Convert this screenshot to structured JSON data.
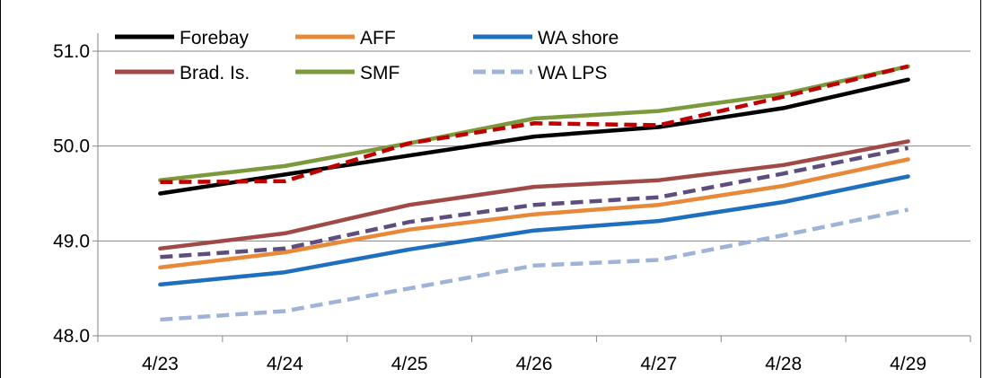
{
  "chart_data": {
    "type": "line",
    "categories": [
      "4/23",
      "4/24",
      "4/25",
      "4/26",
      "4/27",
      "4/28",
      "4/29"
    ],
    "ylim": [
      48.0,
      51.0
    ],
    "yticks": [
      "48.0",
      "49.0",
      "50.0",
      "51.0"
    ],
    "grid": true,
    "legend_position": "top",
    "series": [
      {
        "name": "Forebay",
        "color": "#000000",
        "dash": false,
        "values": [
          49.5,
          49.7,
          49.9,
          50.1,
          50.2,
          50.4,
          50.7
        ]
      },
      {
        "name": "AFF",
        "color": "#E8893A",
        "dash": false,
        "values": [
          48.72,
          48.88,
          49.12,
          49.28,
          49.38,
          49.58,
          49.86
        ]
      },
      {
        "name": "WA shore",
        "color": "#1F6FBF",
        "dash": false,
        "values": [
          48.54,
          48.67,
          48.91,
          49.11,
          49.21,
          49.41,
          49.68
        ]
      },
      {
        "name": "Brad. Is.",
        "color": "#A04A48",
        "dash": false,
        "values": [
          48.92,
          49.08,
          49.38,
          49.57,
          49.64,
          49.8,
          50.05
        ]
      },
      {
        "name": "SMF",
        "color": "#7A9A3C",
        "dash": false,
        "values": [
          49.64,
          49.79,
          50.03,
          50.29,
          50.37,
          50.55,
          50.84
        ]
      },
      {
        "name": "WA LPS",
        "color": "#9FB3D6",
        "dash": true,
        "values": [
          48.17,
          48.26,
          48.5,
          48.74,
          48.8,
          49.06,
          49.33
        ]
      },
      {
        "name": "",
        "color": "#C00000",
        "dash": true,
        "values": [
          49.62,
          49.63,
          50.03,
          50.24,
          50.22,
          50.52,
          50.84
        ]
      },
      {
        "name": "",
        "color": "#5E4E7E",
        "dash": true,
        "values": [
          48.83,
          48.92,
          49.2,
          49.38,
          49.46,
          49.71,
          49.98
        ]
      }
    ]
  }
}
